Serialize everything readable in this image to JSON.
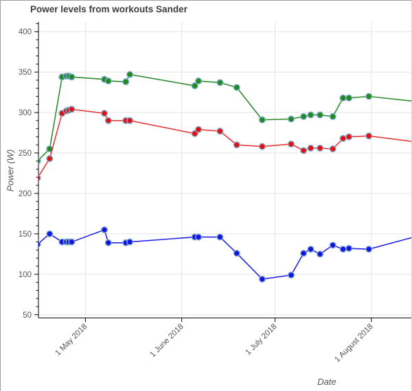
{
  "window": {
    "title": "Power levels from workouts Sander"
  },
  "chart_data": {
    "type": "line",
    "title": "Power levels from workouts Sander",
    "xlabel": "Date",
    "ylabel": "Power (W)",
    "grid": true,
    "legend": "none",
    "ylim": [
      46,
      412
    ],
    "y_ticks": [
      50,
      100,
      150,
      200,
      250,
      300,
      350,
      400
    ],
    "y_minor_tick_step": 10,
    "x_tick_labels": [
      "1 May 2018",
      "1 June 2018",
      "1 July 2018",
      "1 August 2018"
    ],
    "x_tick_offsets": [
      0,
      31,
      61,
      92
    ],
    "xlim_offsets": [
      -15.1,
      105.3
    ],
    "categories": [
      "16 Apr",
      "19 Apr",
      "24 Apr",
      "25 Apr",
      "26 Apr",
      "27 Apr",
      "7 May",
      "8 May",
      "14 May",
      "15 May",
      "5 Jun",
      "6 Jun",
      "13 Jun",
      "19 Jun",
      "27 Jun",
      "6 Jul",
      "10 Jul",
      "13 Jul",
      "15 Jul",
      "20 Jul",
      "23 Jul",
      "25 Jul",
      "31 Jul"
    ],
    "x_offsets": [
      -15.4,
      -11.5,
      -7.5,
      -6.1,
      -5.3,
      -4.4,
      6.1,
      7.4,
      13.0,
      14.3,
      35.2,
      36.4,
      43.3,
      48.7,
      56.9,
      66.2,
      70.2,
      72.5,
      75.5,
      79.6,
      82.9,
      84.8,
      91.2
    ],
    "series": [
      {
        "name": "green",
        "marker_color": "#1d8c1d",
        "line_color": "#2e8b2e",
        "values": [
          240,
          255,
          344,
          345,
          345,
          344,
          341,
          339,
          338,
          347,
          333,
          339,
          337,
          331,
          291,
          292,
          295,
          297,
          297,
          295,
          318,
          318,
          320
        ],
        "exit_value": 314
      },
      {
        "name": "red",
        "marker_color": "#e60e0e",
        "line_color": "#e63939",
        "values": [
          219,
          243,
          299,
          302,
          303,
          304,
          299,
          290,
          290,
          290,
          274,
          279,
          277,
          260,
          258,
          261,
          253,
          256,
          256,
          255,
          268,
          270,
          271
        ],
        "exit_value": 264
      },
      {
        "name": "blue",
        "marker_color": "#1414e0",
        "line_color": "#2222e6",
        "values": [
          137,
          150,
          140,
          140,
          140,
          140,
          155,
          139,
          139,
          140,
          146,
          146,
          146,
          126,
          94,
          99,
          126,
          131,
          125,
          136,
          131,
          132,
          131
        ],
        "exit_value": 146
      }
    ],
    "exit_offset": 105.6,
    "marker_outline_color": "#7faacd",
    "marker_radius": 4.3,
    "line_width": 1.6,
    "gridline_color": "#e4e4e4",
    "axis_color": "#000000",
    "tick_label_color": "#545454",
    "title_color": "#3c3c3c"
  }
}
